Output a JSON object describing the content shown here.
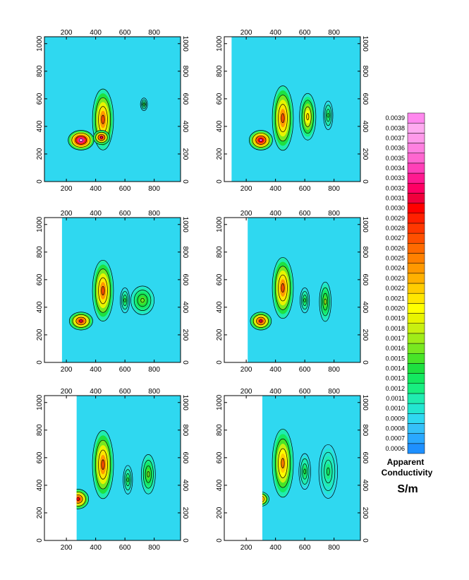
{
  "chart_data": {
    "type": "heatmap",
    "panels": [
      {
        "name": "panel-1",
        "data_x_start": 50,
        "blobs": [
          {
            "x": 300,
            "y": 300,
            "rx": 55,
            "ry": 55,
            "v": 0.0037
          },
          {
            "x": 450,
            "y": 450,
            "rx": 45,
            "ry": 170,
            "v": 0.0027
          },
          {
            "x": 440,
            "y": 320,
            "rx": 35,
            "ry": 40,
            "v": 0.0032
          },
          {
            "x": 730,
            "y": 560,
            "rx": 15,
            "ry": 35,
            "v": 0.0014
          }
        ]
      },
      {
        "name": "panel-2",
        "data_x_start": 100,
        "blobs": [
          {
            "x": 300,
            "y": 300,
            "rx": 50,
            "ry": 55,
            "v": 0.0034
          },
          {
            "x": 450,
            "y": 460,
            "rx": 45,
            "ry": 180,
            "v": 0.0027
          },
          {
            "x": 620,
            "y": 470,
            "rx": 35,
            "ry": 130,
            "v": 0.0022
          },
          {
            "x": 760,
            "y": 480,
            "rx": 20,
            "ry": 80,
            "v": 0.0014
          }
        ]
      },
      {
        "name": "panel-3",
        "data_x_start": 170,
        "blobs": [
          {
            "x": 300,
            "y": 300,
            "rx": 50,
            "ry": 50,
            "v": 0.0031
          },
          {
            "x": 450,
            "y": 520,
            "rx": 45,
            "ry": 170,
            "v": 0.0027
          },
          {
            "x": 600,
            "y": 450,
            "rx": 20,
            "ry": 70,
            "v": 0.0014
          },
          {
            "x": 720,
            "y": 450,
            "rx": 50,
            "ry": 80,
            "v": 0.0016
          }
        ]
      },
      {
        "name": "panel-4",
        "data_x_start": 210,
        "blobs": [
          {
            "x": 300,
            "y": 300,
            "rx": 45,
            "ry": 50,
            "v": 0.0031
          },
          {
            "x": 450,
            "y": 540,
            "rx": 45,
            "ry": 170,
            "v": 0.0027
          },
          {
            "x": 600,
            "y": 450,
            "rx": 20,
            "ry": 70,
            "v": 0.0014
          },
          {
            "x": 740,
            "y": 440,
            "rx": 25,
            "ry": 110,
            "v": 0.0017
          }
        ]
      },
      {
        "name": "panel-5",
        "data_x_start": 270,
        "blobs": [
          {
            "x": 280,
            "y": 300,
            "rx": 45,
            "ry": 55,
            "v": 0.003
          },
          {
            "x": 450,
            "y": 550,
            "rx": 45,
            "ry": 190,
            "v": 0.0027
          },
          {
            "x": 620,
            "y": 440,
            "rx": 20,
            "ry": 80,
            "v": 0.0014
          },
          {
            "x": 760,
            "y": 480,
            "rx": 30,
            "ry": 110,
            "v": 0.0016
          }
        ]
      },
      {
        "name": "panel-6",
        "data_x_start": 310,
        "blobs": [
          {
            "x": 300,
            "y": 300,
            "rx": 35,
            "ry": 40,
            "v": 0.0028
          },
          {
            "x": 450,
            "y": 560,
            "rx": 45,
            "ry": 190,
            "v": 0.0025
          },
          {
            "x": 600,
            "y": 500,
            "rx": 25,
            "ry": 100,
            "v": 0.0014
          },
          {
            "x": 760,
            "y": 500,
            "rx": 40,
            "ry": 150,
            "v": 0.0013
          }
        ]
      }
    ],
    "xlim": [
      50,
      980
    ],
    "ylim": [
      0,
      1050
    ],
    "x_ticks": [
      "200",
      "400",
      "600",
      "800"
    ],
    "y_ticks": [
      "0",
      "200",
      "400",
      "600",
      "800",
      "1000"
    ],
    "background_value": 0.0009,
    "colorbar": {
      "levels": [
        "0.0006",
        "0.0007",
        "0.0008",
        "0.0009",
        "0.0010",
        "0.0011",
        "0.0012",
        "0.0013",
        "0.0014",
        "0.0015",
        "0.0016",
        "0.0017",
        "0.0018",
        "0.0019",
        "0.0020",
        "0.0021",
        "0.0022",
        "0.0023",
        "0.0024",
        "0.0025",
        "0.0026",
        "0.0027",
        "0.0028",
        "0.0029",
        "0.0030",
        "0.0031",
        "0.0032",
        "0.0033",
        "0.0034",
        "0.0035",
        "0.0036",
        "0.0037",
        "0.0038",
        "0.0039"
      ],
      "colors": [
        "#1e90ff",
        "#2aa8ff",
        "#35c0f8",
        "#2fd8f0",
        "#23e6d0",
        "#20ecb0",
        "#18ee80",
        "#14e860",
        "#1ee040",
        "#48e428",
        "#78e820",
        "#a0ec18",
        "#c8f010",
        "#e8f400",
        "#ffff00",
        "#ffe600",
        "#ffcc00",
        "#ffb000",
        "#ff9800",
        "#ff8000",
        "#ff6a00",
        "#ff5000",
        "#ff3800",
        "#ff2000",
        "#ff0000",
        "#f0003c",
        "#ff0064",
        "#ff1a90",
        "#ff40b8",
        "#ff66d0",
        "#ff80e0",
        "#ff99ea",
        "#ffaaf0",
        "#ff88ee"
      ],
      "title_line1": "Apparent",
      "title_line2": "Conductivity",
      "unit": "S/m"
    }
  }
}
